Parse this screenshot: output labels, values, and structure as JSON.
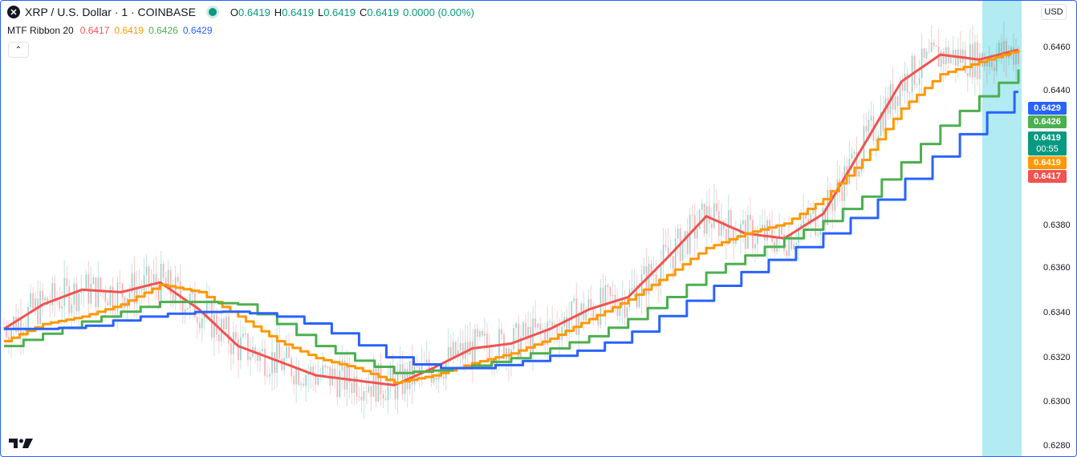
{
  "symbol": {
    "icon_glyph": "✕",
    "title": "XRP / U.S. Dollar · 1 · COINBASE",
    "market_status": "open"
  },
  "ohlc": {
    "o_label": "O",
    "o_value": "0.6419",
    "h_label": "H",
    "h_value": "0.6419",
    "l_label": "L",
    "l_value": "0.6419",
    "c_label": "C",
    "c_value": "0.6419",
    "change": "0.0000 (0.00%)"
  },
  "indicator": {
    "name": "MTF Ribbon 20",
    "values": [
      "0.6417",
      "0.6419",
      "0.6426",
      "0.6429"
    ]
  },
  "colors": {
    "red": "#f05350",
    "orange": "#ff9800",
    "green": "#4caf50",
    "blue": "#2962ff",
    "candle_up": "#089981",
    "candle_down": "#f23645",
    "highlight": "#b2ebf2"
  },
  "controls": {
    "collapse_glyph": "⌃",
    "currency": "USD"
  },
  "price_axis": {
    "ticks": [
      "0.6460",
      "0.6440",
      "0.6380",
      "0.6360",
      "0.6340",
      "0.6320",
      "0.6300",
      "0.6280"
    ]
  },
  "price_labels": {
    "blue": "0.6429",
    "green": "0.6426",
    "last": "0.6419",
    "countdown": "00:55",
    "orange": "0.6419",
    "red": "0.6417"
  },
  "chart_data": {
    "type": "line",
    "ylim": [
      0.6277,
      0.6463
    ],
    "x": [
      0,
      10,
      20,
      30,
      40,
      50,
      60,
      70,
      80,
      90,
      100,
      110,
      120,
      130,
      140,
      150,
      160,
      170,
      180,
      190,
      200,
      210,
      220,
      230,
      240,
      250,
      260
    ],
    "series": [
      {
        "color": "#f05350",
        "values": [
          0.6329,
          0.6339,
          0.6345,
          0.6344,
          0.6348,
          0.6337,
          0.6322,
          0.6316,
          0.631,
          0.6308,
          0.6306,
          0.6313,
          0.6321,
          0.6323,
          0.6329,
          0.6337,
          0.6342,
          0.6358,
          0.6375,
          0.6368,
          0.6366,
          0.6376,
          0.6403,
          0.643,
          0.6441,
          0.6439,
          0.6443
        ]
      },
      {
        "color": "#ff9800",
        "values": [
          0.6324,
          0.6331,
          0.6334,
          0.6339,
          0.6347,
          0.6344,
          0.6334,
          0.6324,
          0.6317,
          0.6313,
          0.6307,
          0.631,
          0.6315,
          0.6319,
          0.6325,
          0.6333,
          0.6341,
          0.6351,
          0.6362,
          0.6368,
          0.6372,
          0.6382,
          0.6398,
          0.6419,
          0.6433,
          0.6438,
          0.6443
        ]
      },
      {
        "color": "#4caf50",
        "values": [
          0.6322,
          0.6327,
          0.6332,
          0.6336,
          0.634,
          0.634,
          0.6339,
          0.6331,
          0.6322,
          0.6316,
          0.6311,
          0.6312,
          0.6314,
          0.6317,
          0.6321,
          0.6326,
          0.6333,
          0.6342,
          0.6352,
          0.6359,
          0.6366,
          0.6373,
          0.6383,
          0.6397,
          0.6412,
          0.6424,
          0.6435
        ]
      },
      {
        "color": "#2962ff",
        "values": [
          0.6329,
          0.6329,
          0.633,
          0.6333,
          0.6335,
          0.6336,
          0.6336,
          0.6334,
          0.633,
          0.6323,
          0.6316,
          0.6313,
          0.6313,
          0.6315,
          0.6318,
          0.6321,
          0.6327,
          0.6336,
          0.6345,
          0.6353,
          0.636,
          0.6368,
          0.6377,
          0.6389,
          0.6402,
          0.6415,
          0.6427
        ]
      }
    ]
  }
}
